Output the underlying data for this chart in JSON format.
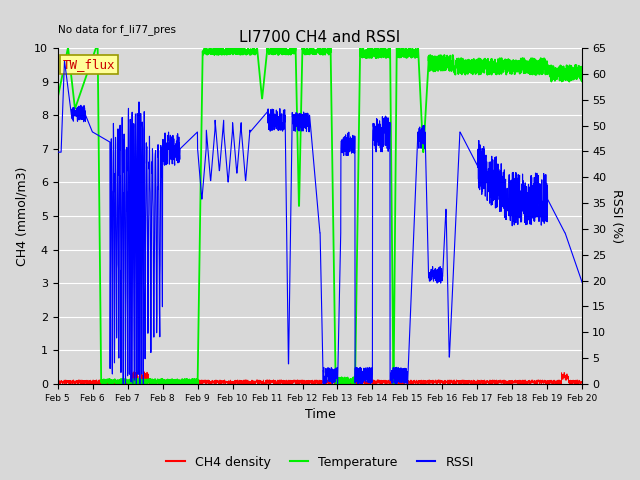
{
  "title": "LI7700 CH4 and RSSI",
  "top_left_text": "No data for f_li77_pres",
  "box_label": "TW_flux",
  "xlabel": "Time",
  "ylabel_left": "CH4 (mmol/m3)",
  "ylabel_right": "RSSI (%)",
  "ylim_left": [
    0.0,
    10.0
  ],
  "ylim_right": [
    0,
    65
  ],
  "yticks_left": [
    0.0,
    1.0,
    2.0,
    3.0,
    4.0,
    5.0,
    6.0,
    7.0,
    8.0,
    9.0,
    10.0
  ],
  "yticks_right": [
    0,
    5,
    10,
    15,
    20,
    25,
    30,
    35,
    40,
    45,
    50,
    55,
    60,
    65
  ],
  "xtick_labels": [
    "Feb 5",
    "Feb 6",
    "Feb 7",
    "Feb 8",
    "Feb 9",
    "Feb 10",
    "Feb 11",
    "Feb 12",
    "Feb 13",
    "Feb 14",
    "Feb 15",
    "Feb 16",
    "Feb 17",
    "Feb 18",
    "Feb 19",
    "Feb 20"
  ],
  "legend_entries": [
    {
      "label": "CH4 density",
      "color": "#ff0000"
    },
    {
      "label": "Temperature",
      "color": "#00ee00"
    },
    {
      "label": "RSSI",
      "color": "#0000ff"
    }
  ],
  "background_color": "#d8d8d8",
  "plot_bg_color": "#d8d8d8",
  "grid_color": "#ffffff",
  "box_label_bg": "#ffff99",
  "box_label_border": "#999900",
  "box_label_text_color": "#cc0000",
  "title_fontsize": 11,
  "axis_fontsize": 9,
  "tick_fontsize": 8
}
